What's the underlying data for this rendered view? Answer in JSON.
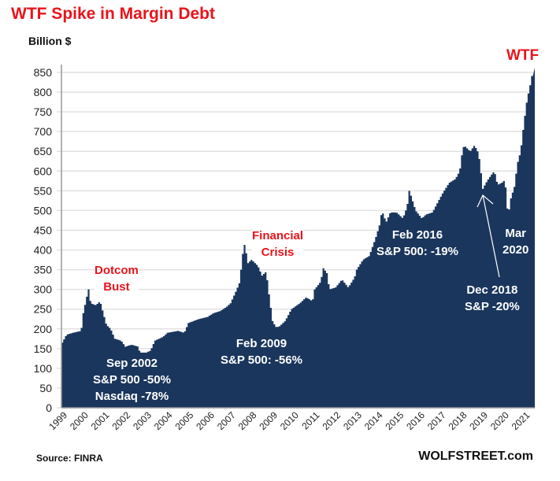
{
  "chart_data": {
    "type": "area",
    "title": "WTF Spike in Margin Debt",
    "ylabel": "Billion $",
    "ylim": [
      0,
      850
    ],
    "yticks": [
      0,
      50,
      100,
      150,
      200,
      250,
      300,
      350,
      400,
      450,
      500,
      550,
      600,
      650,
      700,
      750,
      800,
      850
    ],
    "xticks": [
      "1999",
      "2000",
      "2001",
      "2002",
      "2003",
      "2004",
      "2005",
      "2006",
      "2007",
      "2008",
      "2009",
      "2010",
      "2011",
      "2012",
      "2013",
      "2014",
      "2015",
      "2016",
      "2017",
      "2018",
      "2019",
      "2020",
      "2021"
    ],
    "grid": true,
    "color": "#1b365d",
    "x": [
      1999.0,
      1999.2,
      1999.5,
      1999.9,
      2000.0,
      2000.2,
      2000.25,
      2000.35,
      2000.6,
      2000.8,
      2000.9,
      2001.1,
      2001.3,
      2001.5,
      2001.8,
      2002.0,
      2002.3,
      2002.6,
      2002.7,
      2003.0,
      2003.2,
      2003.4,
      2003.8,
      2004.0,
      2004.5,
      2004.8,
      2005.0,
      2005.5,
      2005.9,
      2006.2,
      2006.5,
      2006.8,
      2007.0,
      2007.3,
      2007.45,
      2007.55,
      2007.65,
      2007.7,
      2007.8,
      2008.0,
      2008.3,
      2008.5,
      2008.7,
      2008.85,
      2009.0,
      2009.15,
      2009.3,
      2009.6,
      2009.9,
      2010.3,
      2010.6,
      2010.9,
      2011.0,
      2011.3,
      2011.4,
      2011.6,
      2011.7,
      2012.0,
      2012.3,
      2012.6,
      2012.9,
      2013.0,
      2013.3,
      2013.6,
      2013.9,
      2014.1,
      2014.2,
      2014.4,
      2014.6,
      2014.9,
      2015.2,
      2015.4,
      2015.5,
      2015.6,
      2015.8,
      2016.1,
      2016.3,
      2016.6,
      2016.9,
      2017.1,
      2017.4,
      2017.7,
      2017.9,
      2018.0,
      2018.1,
      2018.4,
      2018.6,
      2018.8,
      2018.95,
      2019.0,
      2019.2,
      2019.4,
      2019.55,
      2019.7,
      2019.9,
      2020.0,
      2020.1,
      2020.2,
      2020.3,
      2020.5,
      2020.65,
      2020.8,
      2020.95,
      2021.1,
      2021.3,
      2021.4
    ],
    "values": [
      165,
      185,
      190,
      195,
      240,
      290,
      300,
      265,
      260,
      270,
      250,
      210,
      200,
      175,
      170,
      155,
      160,
      155,
      140,
      140,
      145,
      170,
      180,
      190,
      195,
      190,
      215,
      225,
      230,
      240,
      245,
      255,
      265,
      300,
      320,
      380,
      410,
      418,
      365,
      375,
      360,
      335,
      345,
      280,
      220,
      205,
      205,
      220,
      250,
      265,
      280,
      270,
      300,
      320,
      355,
      340,
      300,
      305,
      325,
      305,
      330,
      350,
      375,
      385,
      430,
      465,
      500,
      470,
      495,
      495,
      480,
      510,
      550,
      535,
      500,
      480,
      490,
      495,
      525,
      545,
      570,
      580,
      600,
      640,
      665,
      650,
      665,
      645,
      580,
      555,
      575,
      590,
      600,
      565,
      570,
      575,
      555,
      480,
      525,
      560,
      620,
      650,
      720,
      780,
      830,
      862
    ],
    "annotations": {
      "dotcom": [
        "Dotcom",
        "Bust"
      ],
      "sep2002": [
        "Sep 2002",
        "S&P 500 -50%",
        "Nasdaq -78%"
      ],
      "crisis": [
        "Financial",
        "Crisis"
      ],
      "feb2009": [
        "Feb  2009",
        "S&P 500: -56%"
      ],
      "feb2016": [
        "Feb 2016",
        "S&P 500: -19%"
      ],
      "dec2018": [
        "Dec 2018",
        "S&P -20%"
      ],
      "mar2020": [
        "Mar",
        "2020"
      ],
      "wtf": "WTF"
    }
  },
  "footer": {
    "source": "Source: FINRA",
    "brand": "WOLFSTREET.com"
  }
}
